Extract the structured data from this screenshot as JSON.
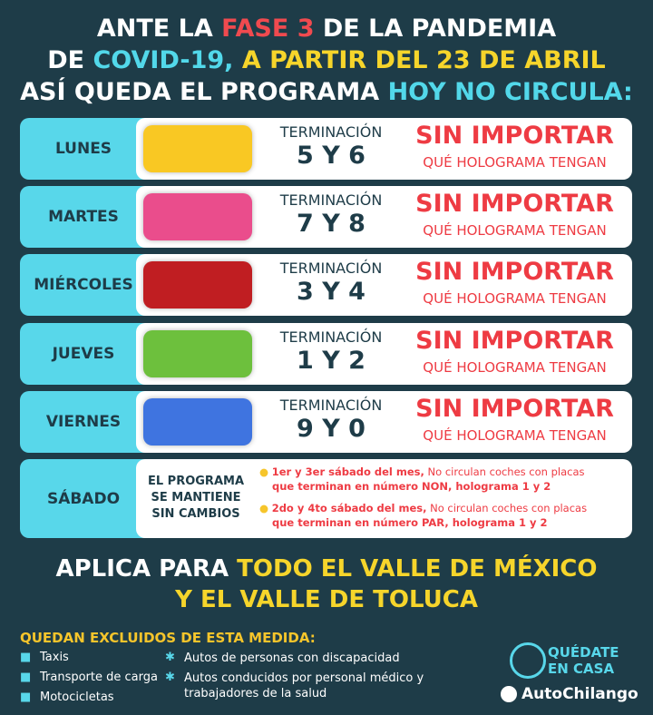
{
  "header": {
    "lines": [
      [
        "ANTE LA ",
        "FASE 3",
        " DE LA PANDEMIA"
      ],
      [
        "DE ",
        "COVID-19,",
        " A PARTIR DEL 23 DE ABRIL"
      ],
      [
        "ASÍ QUEDA EL PROGRAMA ",
        "HOY NO CIRCULA:"
      ]
    ]
  },
  "days": [
    {
      "day": "LUNES",
      "color": "#f9c823",
      "label": "TERMINACIÓN",
      "digits": "5 Y 6",
      "headline": "SIN IMPORTAR",
      "sub": "QUÉ HOLOGRAMA TENGAN"
    },
    {
      "day": "MARTES",
      "color": "#ea4d8c",
      "label": "TERMINACIÓN",
      "digits": "7 Y 8",
      "headline": "SIN IMPORTAR",
      "sub": "QUÉ HOLOGRAMA TENGAN"
    },
    {
      "day": "MIÉRCOLES",
      "color": "#c01e22",
      "label": "TERMINACIÓN",
      "digits": "3 Y 4",
      "headline": "SIN IMPORTAR",
      "sub": "QUÉ HOLOGRAMA TENGAN"
    },
    {
      "day": "JUEVES",
      "color": "#6dc03d",
      "label": "TERMINACIÓN",
      "digits": "1 Y 2",
      "headline": "SIN IMPORTAR",
      "sub": "QUÉ HOLOGRAMA TENGAN"
    },
    {
      "day": "VIERNES",
      "color": "#3f74e0",
      "label": "TERMINACIÓN",
      "digits": "9 Y 0",
      "headline": "SIN IMPORTAR",
      "sub": "QUÉ HOLOGRAMA TENGAN"
    }
  ],
  "saturday": {
    "day": "SÁBADO",
    "program": [
      "EL PROGRAMA",
      "SE MANTIENE",
      "SIN CAMBIOS"
    ],
    "bullets": [
      {
        "when": "1er y 3er sábado del mes,",
        "text": " No circulan coches con placas",
        "detail": "que terminan en número NON, holograma 1 y 2"
      },
      {
        "when": "2do y 4to sábado del mes,",
        "text": " No circulan coches con placas",
        "detail": "que terminan en número PAR, holograma 1 y 2"
      }
    ]
  },
  "applies": {
    "lines": [
      [
        "APLICA PARA ",
        "TODO EL VALLE DE MÉXICO"
      ],
      [
        "Y EL VALLE DE TOLUCA"
      ]
    ]
  },
  "excluded": {
    "title": "QUEDAN EXCLUIDOS DE ESTA MEDIDA:",
    "left": [
      "Taxis",
      "Transporte de carga",
      "Motocicletas"
    ],
    "right": [
      "Autos de personas con discapacidad",
      "Autos conducidos por personal médico y trabajadores de la salud"
    ]
  },
  "logo": {
    "stay": [
      "QUÉDATE",
      "EN CASA"
    ],
    "brand": "AutoChilango"
  }
}
